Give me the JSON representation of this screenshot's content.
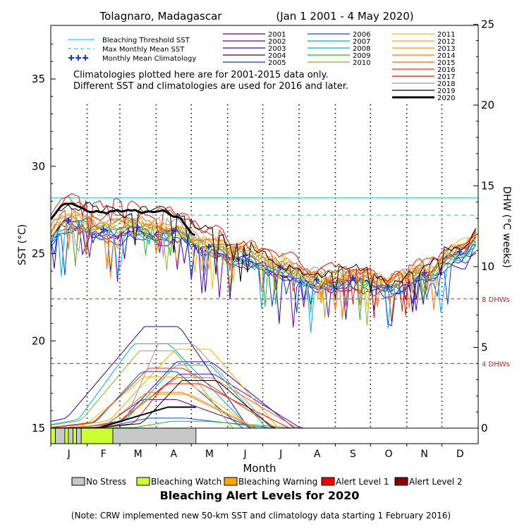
{
  "chart_data": {
    "type": "line",
    "title": "Tolagnaro, Madagascar",
    "date_range": "(Jan 1 2001 - 4 May 2020)",
    "xlabel": "Month",
    "ylabel_left": "SST (°C)",
    "ylabel_right": "DHW (°C weeks)",
    "x_ticks": [
      "J",
      "F",
      "M",
      "A",
      "M",
      "J",
      "J",
      "A",
      "S",
      "O",
      "N",
      "D"
    ],
    "y_left_ticks": [
      "15",
      "20",
      "25",
      "30",
      "35"
    ],
    "y_left_range": [
      15,
      38
    ],
    "y_right_ticks": [
      "0",
      "5",
      "10",
      "15",
      "20",
      "25"
    ],
    "y_right_range": [
      0,
      25
    ],
    "bleaching_threshold_sst": 28.2,
    "max_monthly_mean_sst": 27.2,
    "dhw_reference_lines": [
      {
        "value": 8,
        "label": "8 DHWs"
      },
      {
        "value": 4,
        "label": "4 DHWs"
      }
    ],
    "notes": [
      "Climatologies plotted here are for 2001-2015 data only.",
      "Different SST and climatologies are used for 2016 and later."
    ],
    "legend_reference": [
      {
        "label": "Bleaching Threshold SST",
        "color": "#33ccee",
        "style": "solid"
      },
      {
        "label": "Max Monthly Mean SST",
        "color": "#33ccee",
        "style": "dashed"
      },
      {
        "label": "Monthly Mean Climatology",
        "color": "#1133ee",
        "style": "plus"
      }
    ],
    "monthly_mean_climatology": [
      {
        "day": 15,
        "value": 26.9
      },
      {
        "day": 45,
        "value": 26.4
      },
      {
        "day": 74,
        "value": 26.5
      },
      {
        "day": 105,
        "value": 26.3
      },
      {
        "day": 135,
        "value": 25.4
      },
      {
        "day": 166,
        "value": 24.9
      },
      {
        "day": 196,
        "value": 24.2
      },
      {
        "day": 227,
        "value": 23.5
      },
      {
        "day": 258,
        "value": 23.6
      },
      {
        "day": 288,
        "value": 23.1
      },
      {
        "day": 319,
        "value": 23.9
      },
      {
        "day": 349,
        "value": 25.1
      }
    ],
    "series": [
      {
        "name": "2001",
        "color": "#5500aa"
      },
      {
        "name": "2002",
        "color": "#6600cc"
      },
      {
        "name": "2003",
        "color": "#3300cc"
      },
      {
        "name": "2004",
        "color": "#2200aa"
      },
      {
        "name": "2005",
        "color": "#0044cc"
      },
      {
        "name": "2006",
        "color": "#0055ee"
      },
      {
        "name": "2007",
        "color": "#00aaff"
      },
      {
        "name": "2008",
        "color": "#00bb99"
      },
      {
        "name": "2009",
        "color": "#22bb22"
      },
      {
        "name": "2010",
        "color": "#88bb22"
      },
      {
        "name": "2011",
        "color": "#ffbb00"
      },
      {
        "name": "2012",
        "color": "#ffaa00"
      },
      {
        "name": "2013",
        "color": "#ff9900"
      },
      {
        "name": "2014",
        "color": "#ff7700"
      },
      {
        "name": "2015",
        "color": "#ff6600"
      },
      {
        "name": "2016",
        "color": "#ee3300"
      },
      {
        "name": "2017",
        "color": "#ee1100"
      },
      {
        "name": "2018",
        "color": "#999999"
      },
      {
        "name": "2019",
        "color": "#000000"
      },
      {
        "name": "2020",
        "color": "#000000"
      }
    ],
    "alert_levels_title": "Bleaching Alert Levels for 2020",
    "alert_levels": [
      {
        "label": "No Stress",
        "color": "#c8c8c8"
      },
      {
        "label": "Bleaching Watch",
        "color": "#ccff33"
      },
      {
        "label": "Bleaching Warning",
        "color": "#ffa500"
      },
      {
        "label": "Alert Level 1",
        "color": "#ee0000"
      },
      {
        "label": "Alert Level 2",
        "color": "#880000"
      }
    ],
    "alert_bar_2020": [
      {
        "start_day": 0,
        "end_day": 4,
        "level": "Bleaching Watch"
      },
      {
        "start_day": 4,
        "end_day": 12,
        "level": "No Stress"
      },
      {
        "start_day": 12,
        "end_day": 15,
        "level": "Bleaching Watch"
      },
      {
        "start_day": 15,
        "end_day": 19,
        "level": "No Stress"
      },
      {
        "start_day": 19,
        "end_day": 22,
        "level": "Bleaching Watch"
      },
      {
        "start_day": 22,
        "end_day": 26,
        "level": "No Stress"
      },
      {
        "start_day": 26,
        "end_day": 53,
        "level": "Bleaching Watch"
      },
      {
        "start_day": 53,
        "end_day": 124,
        "level": "No Stress"
      }
    ],
    "footnote": "(Note: CRW implemented new 50-km SST and climatology data starting 1 February 2016)"
  }
}
